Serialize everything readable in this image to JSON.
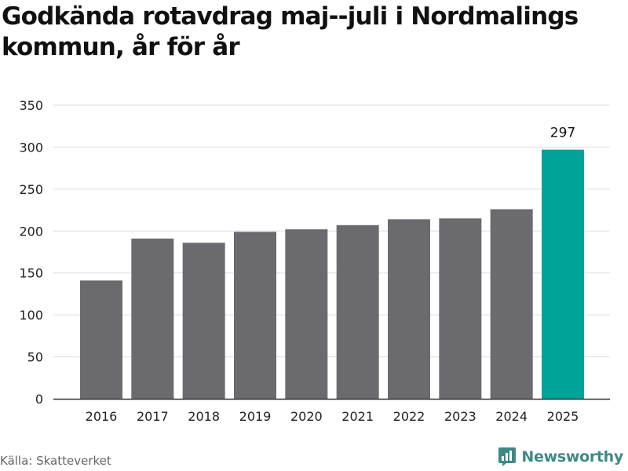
{
  "title": "Godkända rotavdrag maj--juli i Nordmalings kommun, år för år",
  "source": "Källa: Skatteverket",
  "brand": {
    "name": "Newsworthy",
    "icon": "newsworthy-logo-icon",
    "color": "#3d8a84"
  },
  "colors": {
    "bar": "#6b6a6f",
    "highlight": "#00a398",
    "grid": "#dddddd",
    "axis": "#333333"
  },
  "chart_data": {
    "type": "bar",
    "title": "Godkända rotavdrag maj--juli i Nordmalings kommun, år för år",
    "xlabel": "",
    "ylabel": "",
    "categories": [
      "2016",
      "2017",
      "2018",
      "2019",
      "2020",
      "2021",
      "2022",
      "2023",
      "2024",
      "2025"
    ],
    "values": [
      141,
      191,
      186,
      199,
      202,
      207,
      214,
      215,
      226,
      297
    ],
    "ylim": [
      0,
      350
    ],
    "yticks": [
      0,
      50,
      100,
      150,
      200,
      250,
      300,
      350
    ],
    "grid": true,
    "highlight_index": 9,
    "data_labels": [
      {
        "index": 9,
        "text": "297"
      }
    ]
  }
}
